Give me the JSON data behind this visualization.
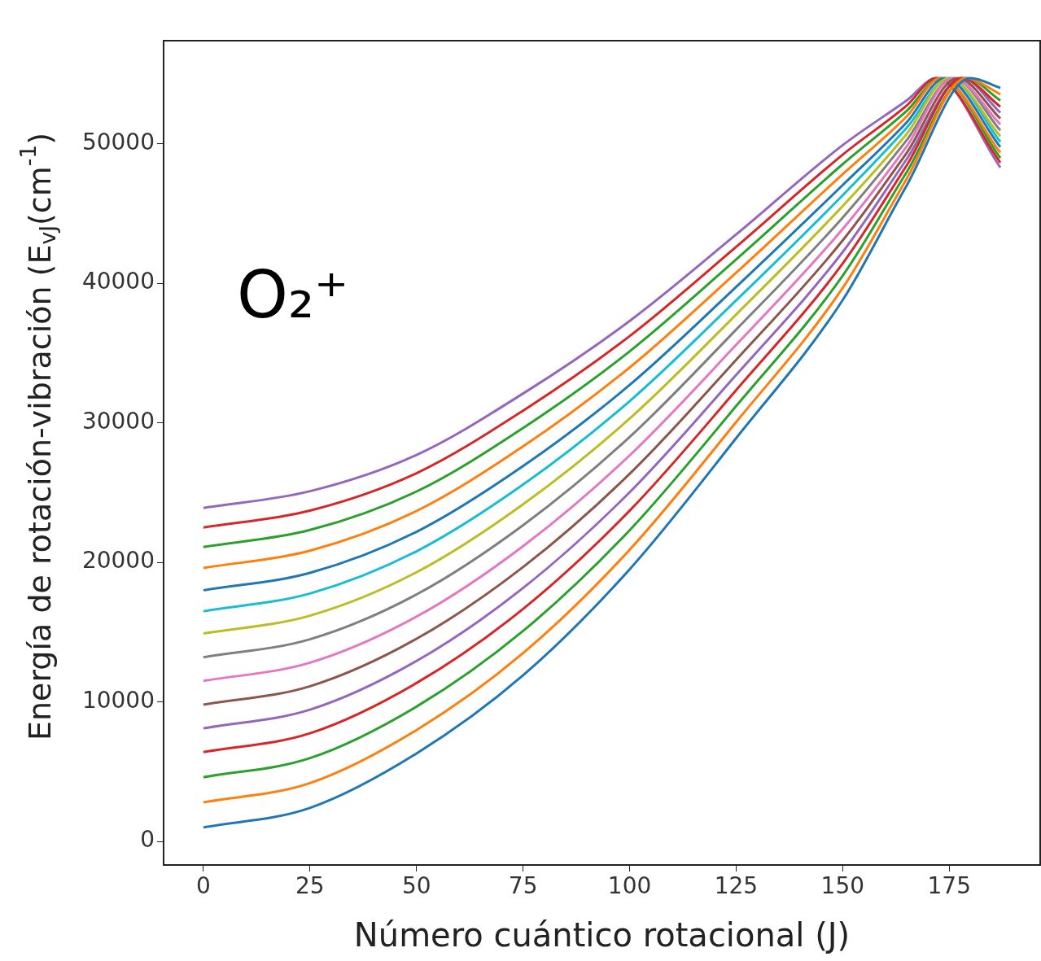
{
  "chart_data": {
    "type": "line",
    "xlabel": "Número cuántico rotacional (J)",
    "ylabel": "Energía de rotación-vibración (E$_{vJ}$(cm$^{-1}$)",
    "annotations": [
      "O₂⁺"
    ],
    "xlim": [
      -9.35,
      196.35
    ],
    "ylim": [
      -1690,
      57390
    ],
    "xticks": [
      0,
      25,
      50,
      75,
      100,
      125,
      150,
      175
    ],
    "yticks": [
      0,
      10000,
      20000,
      30000,
      40000,
      50000
    ],
    "grid": false,
    "series": [
      {
        "color": "#1f77b4",
        "x": [
          0,
          25,
          50,
          75,
          100,
          125,
          150,
          165,
          180,
          187
        ],
        "values": [
          1000,
          2400,
          6300,
          11900,
          19500,
          28900,
          38800,
          47000,
          54700,
          54000
        ]
      },
      {
        "color": "#ff7f0e",
        "x": [
          0,
          25,
          50,
          75,
          100,
          125,
          150,
          165,
          179,
          187
        ],
        "values": [
          2800,
          4180,
          7980,
          13490,
          20900,
          30050,
          39670,
          47480,
          54700,
          53550
        ]
      },
      {
        "color": "#2ca02c",
        "x": [
          0,
          25,
          50,
          75,
          100,
          125,
          150,
          165,
          179,
          187
        ],
        "values": [
          4600,
          5970,
          9660,
          15080,
          22300,
          31200,
          40540,
          47960,
          54700,
          53100
        ]
      },
      {
        "color": "#d62728",
        "x": [
          0,
          25,
          50,
          75,
          100,
          125,
          150,
          165,
          178,
          187
        ],
        "values": [
          6400,
          7750,
          11350,
          16660,
          23700,
          32340,
          41420,
          48440,
          54700,
          52660
        ]
      },
      {
        "color": "#9467bd",
        "x": [
          0,
          25,
          50,
          75,
          100,
          125,
          150,
          165,
          178,
          187
        ],
        "values": [
          8100,
          9440,
          12930,
          18160,
          25020,
          33430,
          42240,
          48890,
          54700,
          52230
        ]
      },
      {
        "color": "#8c564b",
        "x": [
          0,
          25,
          50,
          75,
          100,
          125,
          150,
          165,
          177,
          187
        ],
        "values": [
          9800,
          11120,
          14520,
          19660,
          26340,
          34510,
          43070,
          49340,
          54700,
          51810
        ]
      },
      {
        "color": "#e377c2",
        "x": [
          0,
          25,
          50,
          75,
          100,
          125,
          150,
          165,
          176,
          187
        ],
        "values": [
          11500,
          12810,
          16110,
          21160,
          27660,
          35590,
          43890,
          49800,
          54700,
          51390
        ]
      },
      {
        "color": "#7f7f7f",
        "x": [
          0,
          25,
          50,
          75,
          100,
          125,
          150,
          165,
          176,
          187
        ],
        "values": [
          13200,
          14490,
          17700,
          22660,
          28980,
          36680,
          44710,
          50250,
          54700,
          50960
        ]
      },
      {
        "color": "#bcbd22",
        "x": [
          0,
          25,
          50,
          75,
          100,
          125,
          150,
          165,
          175,
          187
        ],
        "values": [
          14900,
          16180,
          19290,
          24160,
          30300,
          37760,
          45540,
          50700,
          54700,
          50540
        ]
      },
      {
        "color": "#17becf",
        "x": [
          0,
          25,
          50,
          75,
          100,
          125,
          150,
          165,
          175,
          187
        ],
        "values": [
          16500,
          17770,
          20790,
          25570,
          31550,
          38780,
          46310,
          51130,
          54700,
          50140
        ]
      },
      {
        "color": "#1f77b4",
        "x": [
          0,
          25,
          50,
          75,
          100,
          125,
          150,
          165,
          174,
          187
        ],
        "values": [
          18000,
          19250,
          22190,
          26900,
          32710,
          39740,
          47040,
          51530,
          54700,
          49770
        ]
      },
      {
        "color": "#ff7f0e",
        "x": [
          0,
          25,
          50,
          75,
          100,
          125,
          150,
          165,
          173,
          187
        ],
        "values": [
          19600,
          20840,
          23680,
          28310,
          33960,
          40760,
          47820,
          51950,
          54700,
          49370
        ]
      },
      {
        "color": "#2ca02c",
        "x": [
          0,
          25,
          50,
          75,
          100,
          125,
          150,
          165,
          173,
          187
        ],
        "values": [
          21100,
          22320,
          25080,
          29630,
          35120,
          41710,
          48540,
          52350,
          54700,
          48990
        ]
      },
      {
        "color": "#d62728",
        "x": [
          0,
          25,
          50,
          75,
          100,
          125,
          150,
          165,
          172,
          187
        ],
        "values": [
          22500,
          23710,
          26390,
          30870,
          36210,
          42610,
          49220,
          52730,
          54700,
          48650
        ]
      },
      {
        "color": "#9467bd",
        "x": [
          0,
          25,
          50,
          75,
          100,
          125,
          150,
          165,
          172,
          187
        ],
        "values": [
          23900,
          25100,
          27700,
          32100,
          37300,
          43500,
          49900,
          53100,
          54700,
          48300
        ]
      }
    ]
  }
}
